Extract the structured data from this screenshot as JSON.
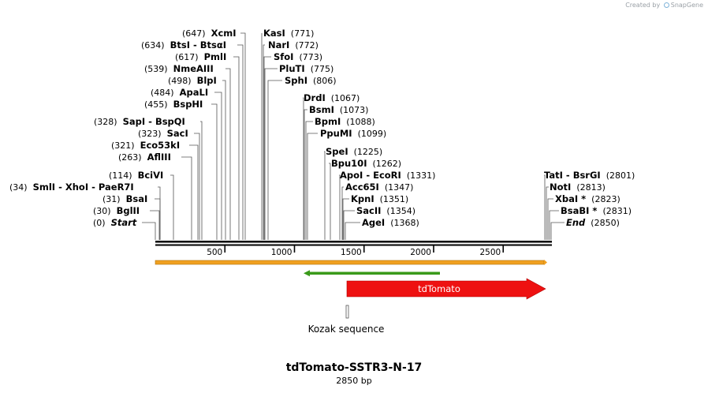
{
  "credit": {
    "created_by": "Created by",
    "brand": "SnapGene"
  },
  "plasmid": {
    "name": "tdTomato-SSTR3-N-17",
    "length_label": "2850 bp"
  },
  "ruler": {
    "ticks": [
      500,
      1000,
      1500,
      2000,
      2500
    ]
  },
  "sites": [
    {
      "pos": "(647)",
      "name": "XcmI"
    },
    {
      "pos": "(634)",
      "name": "BtsI",
      "name2": "BtsαI"
    },
    {
      "pos": "(617)",
      "name": "PmlI"
    },
    {
      "pos": "(539)",
      "name": "NmeAIII"
    },
    {
      "pos": "(498)",
      "name": "BlpI"
    },
    {
      "pos": "(484)",
      "name": "ApaLI"
    },
    {
      "pos": "(455)",
      "name": "BspHI"
    },
    {
      "pos": "(328)",
      "name": "SapI",
      "name2": "BspQI"
    },
    {
      "pos": "(323)",
      "name": "SacI"
    },
    {
      "pos": "(321)",
      "name": "Eco53kI"
    },
    {
      "pos": "(263)",
      "name": "AflIII"
    },
    {
      "pos": "(114)",
      "name": "BciVI"
    },
    {
      "pos": "(34)",
      "name": "SmlI",
      "name2": "XhoI",
      "name3": "PaeR7I"
    },
    {
      "pos": "(31)",
      "name": "BsaI"
    },
    {
      "pos": "(30)",
      "name": "BglII"
    },
    {
      "pos": "(0)",
      "name": "Start"
    },
    {
      "pos": "(771)",
      "name": "KasI"
    },
    {
      "pos": "(772)",
      "name": "NarI"
    },
    {
      "pos": "(773)",
      "name": "SfoI"
    },
    {
      "pos": "(775)",
      "name": "PluTI"
    },
    {
      "pos": "(806)",
      "name": "SphI"
    },
    {
      "pos": "(1067)",
      "name": "DrdI"
    },
    {
      "pos": "(1073)",
      "name": "BsmI"
    },
    {
      "pos": "(1088)",
      "name": "BpmI"
    },
    {
      "pos": "(1099)",
      "name": "PpuMI"
    },
    {
      "pos": "(1225)",
      "name": "SpeI"
    },
    {
      "pos": "(1262)",
      "name": "Bpu10I"
    },
    {
      "pos": "(1331)",
      "name": "ApoI",
      "name2": "EcoRI"
    },
    {
      "pos": "(1347)",
      "name": "Acc65I"
    },
    {
      "pos": "(1351)",
      "name": "KpnI"
    },
    {
      "pos": "(1354)",
      "name": "SacII"
    },
    {
      "pos": "(1368)",
      "name": "AgeI"
    },
    {
      "pos": "(2801)",
      "name": "TatI",
      "name2": "BsrGI"
    },
    {
      "pos": "(2813)",
      "name": "NotI"
    },
    {
      "pos": "(2823)",
      "name": "XbaI *"
    },
    {
      "pos": "(2831)",
      "name": "BsaBI *"
    },
    {
      "pos": "(2850)",
      "name": "End"
    }
  ],
  "features": {
    "tdtomato": {
      "label": "tdTomato",
      "start": 1368,
      "end": 2801,
      "color": "#ee1111"
    },
    "kozak": {
      "label": "Kozak sequence",
      "pos": 1360
    },
    "green_arrow": {
      "start": 1067,
      "end": 2060,
      "color": "#3a9a1a"
    },
    "orange_bar": {
      "start": 0,
      "end": 2850,
      "color": "#f0a020"
    }
  }
}
